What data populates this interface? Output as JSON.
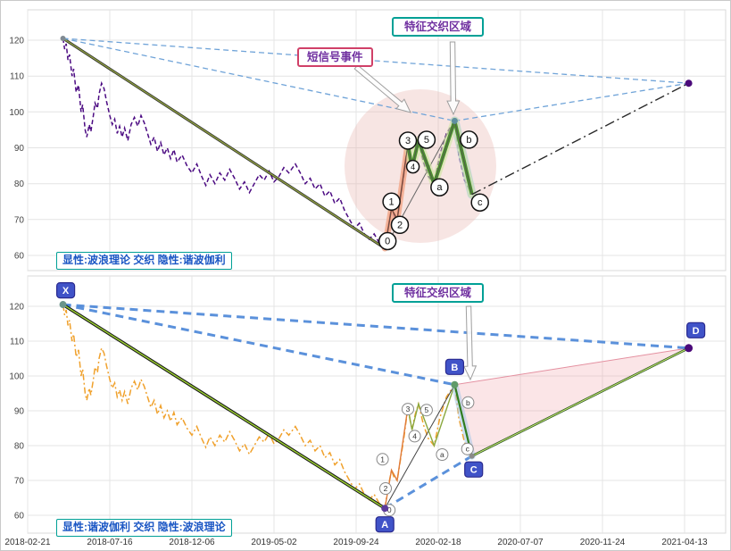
{
  "panels": {
    "top": {
      "caption": "显性:波浪理论 交织 隐性:谐波伽利",
      "zone_label": "特征交织区域",
      "event_label": "短信号事件"
    },
    "bottom": {
      "caption": "显性:谐波伽利 交织 隐性:波浪理论",
      "zone_label": "特征交织区域"
    }
  },
  "chart_data": {
    "type": "line",
    "axes": {
      "x_ticks": [
        "2018-02-21",
        "2018-07-16",
        "2018-12-06",
        "2019-05-02",
        "2019-09-24",
        "2020-02-18",
        "2020-07-07",
        "2020-11-24",
        "2021-04-13"
      ],
      "y_ticks": [
        120,
        110,
        100,
        90,
        80,
        70,
        60
      ]
    },
    "ylim": [
      55,
      128
    ],
    "price_series": [
      [
        0.43,
        120.5
      ],
      [
        0.45,
        117.5
      ],
      [
        0.47,
        119
      ],
      [
        0.49,
        114.5
      ],
      [
        0.51,
        116
      ],
      [
        0.54,
        110
      ],
      [
        0.56,
        112
      ],
      [
        0.59,
        105.5
      ],
      [
        0.62,
        107.5
      ],
      [
        0.65,
        100
      ],
      [
        0.67,
        102
      ],
      [
        0.7,
        95
      ],
      [
        0.72,
        93
      ],
      [
        0.75,
        96.5
      ],
      [
        0.77,
        94.5
      ],
      [
        0.8,
        99
      ],
      [
        0.82,
        102.5
      ],
      [
        0.85,
        101
      ],
      [
        0.87,
        105
      ],
      [
        0.9,
        108
      ],
      [
        0.93,
        106.5
      ],
      [
        0.96,
        103
      ],
      [
        1.0,
        99
      ],
      [
        1.03,
        96.5
      ],
      [
        1.06,
        98
      ],
      [
        1.09,
        94
      ],
      [
        1.12,
        96
      ],
      [
        1.15,
        93
      ],
      [
        1.18,
        95.5
      ],
      [
        1.22,
        92
      ],
      [
        1.26,
        96.5
      ],
      [
        1.3,
        98.5
      ],
      [
        1.34,
        96
      ],
      [
        1.38,
        99
      ],
      [
        1.42,
        97
      ],
      [
        1.46,
        94
      ],
      [
        1.5,
        91
      ],
      [
        1.54,
        93
      ],
      [
        1.58,
        89
      ],
      [
        1.62,
        91.5
      ],
      [
        1.66,
        88
      ],
      [
        1.7,
        90
      ],
      [
        1.74,
        87
      ],
      [
        1.78,
        89.5
      ],
      [
        1.82,
        86
      ],
      [
        1.88,
        88
      ],
      [
        1.94,
        85
      ],
      [
        2.0,
        83
      ],
      [
        2.06,
        85.5
      ],
      [
        2.12,
        82
      ],
      [
        2.17,
        79.5
      ],
      [
        2.22,
        82.5
      ],
      [
        2.28,
        80
      ],
      [
        2.34,
        83
      ],
      [
        2.4,
        81
      ],
      [
        2.46,
        84
      ],
      [
        2.52,
        81.5
      ],
      [
        2.58,
        78.5
      ],
      [
        2.64,
        80.5
      ],
      [
        2.7,
        77.5
      ],
      [
        2.76,
        80
      ],
      [
        2.82,
        82.5
      ],
      [
        2.88,
        81
      ],
      [
        2.94,
        83.5
      ],
      [
        3.0,
        80.5
      ],
      [
        3.06,
        82
      ],
      [
        3.12,
        84.5
      ],
      [
        3.18,
        83
      ],
      [
        3.26,
        85.5
      ],
      [
        3.32,
        83
      ],
      [
        3.38,
        80
      ],
      [
        3.44,
        81.5
      ],
      [
        3.5,
        78.5
      ],
      [
        3.56,
        80
      ],
      [
        3.62,
        76.5
      ],
      [
        3.68,
        78
      ],
      [
        3.74,
        74.5
      ],
      [
        3.8,
        76
      ],
      [
        3.86,
        72.5
      ],
      [
        3.92,
        70
      ],
      [
        3.98,
        67.5
      ],
      [
        4.04,
        69
      ],
      [
        4.1,
        66
      ],
      [
        4.16,
        64.5
      ],
      [
        4.22,
        66
      ],
      [
        4.28,
        63.5
      ],
      [
        4.35,
        62
      ],
      [
        4.39,
        68
      ],
      [
        4.43,
        73
      ],
      [
        4.46,
        71
      ],
      [
        4.5,
        70
      ],
      [
        4.54,
        76
      ],
      [
        4.58,
        82
      ],
      [
        4.63,
        91
      ],
      [
        4.66,
        87
      ],
      [
        4.68,
        84.5
      ],
      [
        4.72,
        89
      ],
      [
        4.76,
        92
      ],
      [
        4.82,
        86
      ],
      [
        4.88,
        82
      ],
      [
        4.95,
        80
      ],
      [
        5.02,
        88
      ],
      [
        5.1,
        94
      ],
      [
        5.2,
        97.5
      ],
      [
        5.25,
        88
      ],
      [
        5.32,
        81
      ],
      [
        5.41,
        77
      ]
    ],
    "wave_points": [
      {
        "label": "0",
        "t": 4.35,
        "p": 62
      },
      {
        "label": "1",
        "t": 4.43,
        "p": 73
      },
      {
        "label": "2",
        "t": 4.5,
        "p": 70
      },
      {
        "label": "3",
        "t": 4.63,
        "p": 91
      },
      {
        "label": "4",
        "t": 4.68,
        "p": 84.5
      },
      {
        "label": "5",
        "t": 4.76,
        "p": 92
      },
      {
        "label": "a",
        "t": 4.95,
        "p": 80
      },
      {
        "label": "b",
        "t": 5.2,
        "p": 97.5
      },
      {
        "label": "c",
        "t": 5.41,
        "p": 77
      }
    ],
    "harmonic_points": [
      {
        "label": "X",
        "t": 0.43,
        "p": 120.5
      },
      {
        "label": "A",
        "t": 4.35,
        "p": 62
      },
      {
        "label": "B",
        "t": 5.2,
        "p": 97.5
      },
      {
        "label": "C",
        "t": 5.41,
        "p": 77
      },
      {
        "label": "D",
        "t": 8.05,
        "p": 108
      }
    ]
  },
  "colors": {
    "price_top": "#4b0a82",
    "price_bottom": "#f0a12c",
    "impulse": "#b4472a",
    "impulse_glow": "#f2a98c",
    "corrective": "#4c8f2f",
    "corrective_glow": "#cfe6a0",
    "trend_blue_dashed": "#6fa3d8",
    "harmonic_dashed": "#4a86d8",
    "xa_line_green": "#9acd32",
    "projection_dashdot": "#2a2a2a",
    "badge_fill": "#4053c8",
    "zone_border": "#00a096",
    "event_border": "#d04068",
    "label_text": "#7030a0",
    "caption_text": "#1a56c4",
    "pink_zone": "#e8b4b0",
    "pink_triangle": "#f2a0aa",
    "halo_blue": "#9fc5e8"
  }
}
